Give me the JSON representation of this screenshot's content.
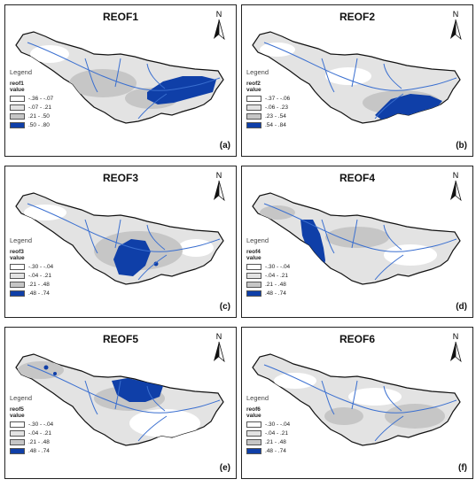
{
  "colors": {
    "class1": "#ffffff",
    "class2": "#e3e3e3",
    "class3": "#c6c6c6",
    "class4": "#0f3fa8",
    "river": "#3a6fd0",
    "boundary": "#111111"
  },
  "north_label": "N",
  "legend_title": "Legend",
  "value_label": "value",
  "panels": [
    {
      "title": "REOF1",
      "field": "reof1",
      "label": "(a)",
      "classes": [
        "-.36 - -.07",
        "-.07 - .21",
        ".21 - .50",
        ".50 - .80"
      ]
    },
    {
      "title": "REOF2",
      "field": "reof2",
      "label": "(b)",
      "classes": [
        "-.37 - -.06",
        "-.06 - .23",
        ".23 - .54",
        ".54 - .84"
      ]
    },
    {
      "title": "REOF3",
      "field": "reof3",
      "label": "(c)",
      "classes": [
        "-.30 - -.04",
        "-.04 - .21",
        ".21 - .48",
        ".48 - .74"
      ]
    },
    {
      "title": "REOF4",
      "field": "reof4",
      "label": "(d)",
      "classes": [
        "-.30 - -.04",
        "-.04 - .21",
        ".21 - .48",
        ".48 - .74"
      ]
    },
    {
      "title": "REOF5",
      "field": "reof5",
      "label": "(e)",
      "classes": [
        "-.30 - -.04",
        "-.04 - .21",
        ".21 - .48",
        ".48 - .74"
      ]
    },
    {
      "title": "REOF6",
      "field": "reof6",
      "label": "(f)",
      "classes": [
        "-.30 - -.04",
        "-.04 - .21",
        ".21 - .48",
        ".48 - .74"
      ]
    }
  ]
}
